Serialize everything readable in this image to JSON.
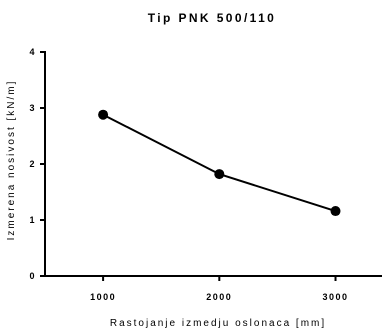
{
  "chart_data": {
    "type": "line",
    "title": "Tip PNK 500/110",
    "xlabel": "Rastojanje izmedju oslonaca [mm]",
    "ylabel": "Izmerena nosivost [kN/m]",
    "x": [
      1000,
      2000,
      3000
    ],
    "x_ticks": [
      "1000",
      "2000",
      "3000"
    ],
    "y_ticks": [
      "0",
      "1",
      "2",
      "3",
      "4"
    ],
    "xlim": [
      500,
      3400
    ],
    "ylim": [
      0,
      4
    ],
    "series": [
      {
        "values": [
          2.88,
          1.82,
          1.16
        ]
      }
    ],
    "grid": false,
    "legend": "none",
    "color": "#000000"
  }
}
